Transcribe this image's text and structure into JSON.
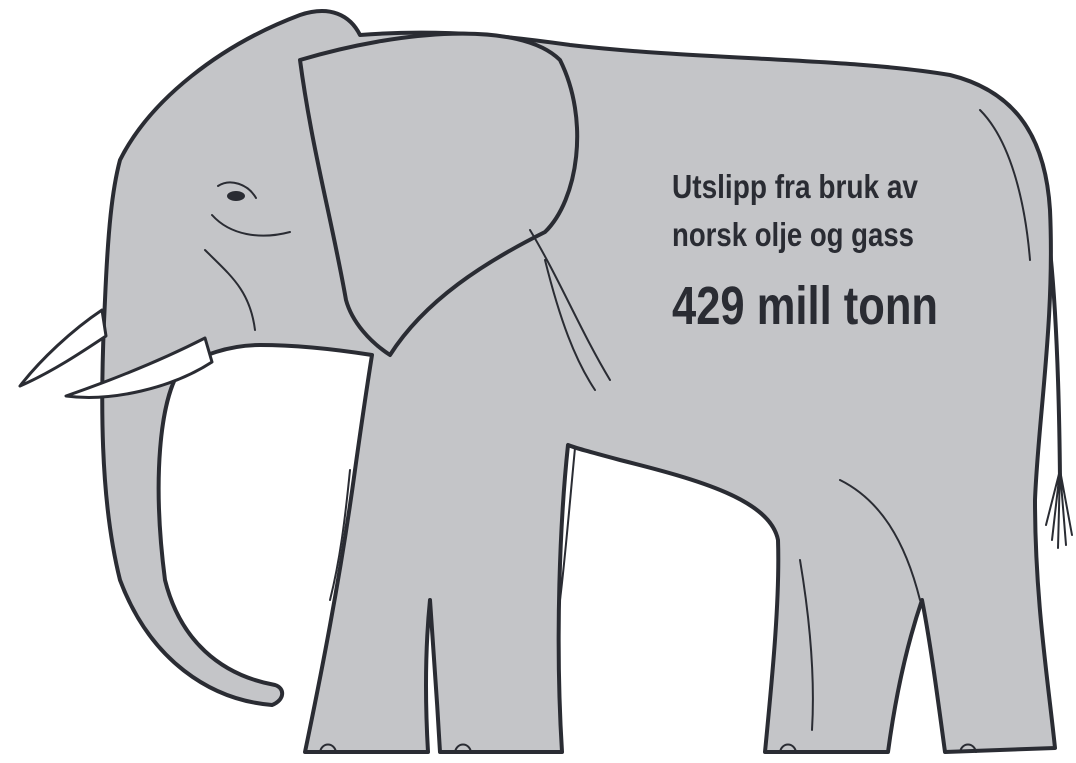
{
  "caption": {
    "lines": [
      "Utslipp fra bruk av",
      "norsk olje og gass"
    ],
    "value": "429 mill tonn"
  }
}
